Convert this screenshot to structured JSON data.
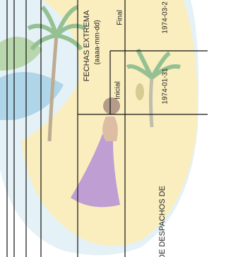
{
  "header": {
    "title": "FECHAS EXTREMA",
    "subtitle": "(aaaa-mm-dd)"
  },
  "columns": [
    "Inicial",
    "Final"
  ],
  "dates": [
    "1974-01-31",
    "1974-03-2"
  ],
  "footer_text": "DE DESPACHOS DE"
}
